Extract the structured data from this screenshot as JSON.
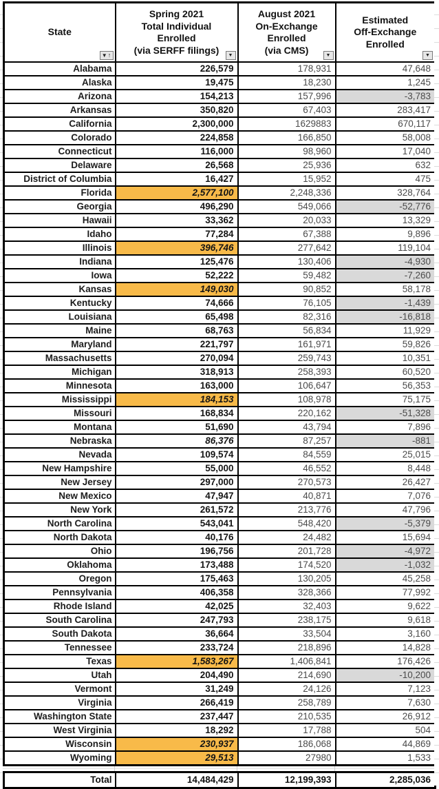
{
  "table": {
    "columns": [
      {
        "key": "state",
        "title": "State",
        "filter_icon": "filter-sort-ascending"
      },
      {
        "key": "spring",
        "title": "Spring 2021\nTotal Individual\nEnrolled\n(via SERFF filings)",
        "filter_icon": "filter-dropdown"
      },
      {
        "key": "august",
        "title": "August 2021\nOn-Exchange\nEnrolled\n(via CMS)",
        "filter_icon": "filter-dropdown"
      },
      {
        "key": "offex",
        "title": "Estimated\nOff-Exchange\nEnrolled",
        "filter_icon": "filter-dropdown"
      }
    ],
    "rows": [
      {
        "state": "Alabama",
        "spring": "226,579",
        "august": "178,931",
        "offex": "47,648"
      },
      {
        "state": "Alaska",
        "spring": "19,475",
        "august": "18,230",
        "offex": "1,245"
      },
      {
        "state": "Arizona",
        "spring": "154,213",
        "august": "157,996",
        "offex": "-3,783",
        "offex_style": "gray"
      },
      {
        "state": "Arkansas",
        "spring": "350,820",
        "august": "67,403",
        "offex": "283,417"
      },
      {
        "state": "California",
        "spring": "2,300,000",
        "august": "1629883",
        "offex": "670,117"
      },
      {
        "state": "Colorado",
        "spring": "224,858",
        "august": "166,850",
        "offex": "58,008"
      },
      {
        "state": "Connecticut",
        "spring": "116,000",
        "august": "98,960",
        "offex": "17,040"
      },
      {
        "state": "Delaware",
        "spring": "26,568",
        "august": "25,936",
        "offex": "632"
      },
      {
        "state": "District of Columbia",
        "spring": "16,427",
        "august": "15,952",
        "offex": "475"
      },
      {
        "state": "Florida",
        "spring": "2,577,100",
        "august": "2,248,336",
        "offex": "328,764",
        "spring_style": "orange"
      },
      {
        "state": "Georgia",
        "spring": "496,290",
        "august": "549,066",
        "offex": "-52,776",
        "offex_style": "gray"
      },
      {
        "state": "Hawaii",
        "spring": "33,362",
        "august": "20,033",
        "offex": "13,329"
      },
      {
        "state": "Idaho",
        "spring": "77,284",
        "august": "67,388",
        "offex": "9,896"
      },
      {
        "state": "Illinois",
        "spring": "396,746",
        "august": "277,642",
        "offex": "119,104",
        "spring_style": "orange"
      },
      {
        "state": "Indiana",
        "spring": "125,476",
        "august": "130,406",
        "offex": "-4,930",
        "offex_style": "gray"
      },
      {
        "state": "Iowa",
        "spring": "52,222",
        "august": "59,482",
        "offex": "-7,260",
        "offex_style": "gray"
      },
      {
        "state": "Kansas",
        "spring": "149,030",
        "august": "90,852",
        "offex": "58,178",
        "spring_style": "orange"
      },
      {
        "state": "Kentucky",
        "spring": "74,666",
        "august": "76,105",
        "offex": "-1,439",
        "offex_style": "gray"
      },
      {
        "state": "Louisiana",
        "spring": "65,498",
        "august": "82,316",
        "offex": "-16,818",
        "offex_style": "gray"
      },
      {
        "state": "Maine",
        "spring": "68,763",
        "august": "56,834",
        "offex": "11,929"
      },
      {
        "state": "Maryland",
        "spring": "221,797",
        "august": "161,971",
        "offex": "59,826"
      },
      {
        "state": "Massachusetts",
        "spring": "270,094",
        "august": "259,743",
        "offex": "10,351"
      },
      {
        "state": "Michigan",
        "spring": "318,913",
        "august": "258,393",
        "offex": "60,520"
      },
      {
        "state": "Minnesota",
        "spring": "163,000",
        "august": "106,647",
        "offex": "56,353"
      },
      {
        "state": "Mississippi",
        "spring": "184,153",
        "august": "108,978",
        "offex": "75,175",
        "spring_style": "orange"
      },
      {
        "state": "Missouri",
        "spring": "168,834",
        "august": "220,162",
        "offex": "-51,328",
        "offex_style": "gray"
      },
      {
        "state": "Montana",
        "spring": "51,690",
        "august": "43,794",
        "offex": "7,896"
      },
      {
        "state": "Nebraska",
        "spring": "86,376",
        "august": "87,257",
        "offex": "-881",
        "spring_style": "italic",
        "offex_style": "gray"
      },
      {
        "state": "Nevada",
        "spring": "109,574",
        "august": "84,559",
        "offex": "25,015"
      },
      {
        "state": "New Hampshire",
        "spring": "55,000",
        "august": "46,552",
        "offex": "8,448"
      },
      {
        "state": "New Jersey",
        "spring": "297,000",
        "august": "270,573",
        "offex": "26,427"
      },
      {
        "state": "New Mexico",
        "spring": "47,947",
        "august": "40,871",
        "offex": "7,076"
      },
      {
        "state": "New York",
        "spring": "261,572",
        "august": "213,776",
        "offex": "47,796"
      },
      {
        "state": "North Carolina",
        "spring": "543,041",
        "august": "548,420",
        "offex": "-5,379",
        "offex_style": "gray"
      },
      {
        "state": "North Dakota",
        "spring": "40,176",
        "august": "24,482",
        "offex": "15,694"
      },
      {
        "state": "Ohio",
        "spring": "196,756",
        "august": "201,728",
        "offex": "-4,972",
        "offex_style": "gray"
      },
      {
        "state": "Oklahoma",
        "spring": "173,488",
        "august": "174,520",
        "offex": "-1,032",
        "offex_style": "gray"
      },
      {
        "state": "Oregon",
        "spring": "175,463",
        "august": "130,205",
        "offex": "45,258"
      },
      {
        "state": "Pennsylvania",
        "spring": "406,358",
        "august": "328,366",
        "offex": "77,992"
      },
      {
        "state": "Rhode Island",
        "spring": "42,025",
        "august": "32,403",
        "offex": "9,622"
      },
      {
        "state": "South Carolina",
        "spring": "247,793",
        "august": "238,175",
        "offex": "9,618"
      },
      {
        "state": "South Dakota",
        "spring": "36,664",
        "august": "33,504",
        "offex": "3,160"
      },
      {
        "state": "Tennessee",
        "spring": "233,724",
        "august": "218,896",
        "offex": "14,828"
      },
      {
        "state": "Texas",
        "spring": "1,583,267",
        "august": "1,406,841",
        "offex": "176,426",
        "spring_style": "orange"
      },
      {
        "state": "Utah",
        "spring": "204,490",
        "august": "214,690",
        "offex": "-10,200",
        "offex_style": "gray"
      },
      {
        "state": "Vermont",
        "spring": "31,249",
        "august": "24,126",
        "offex": "7,123"
      },
      {
        "state": "Virginia",
        "spring": "266,419",
        "august": "258,789",
        "offex": "7,630"
      },
      {
        "state": "Washington State",
        "spring": "237,447",
        "august": "210,535",
        "offex": "26,912"
      },
      {
        "state": "West Virginia",
        "spring": "18,292",
        "august": "17,788",
        "offex": "504"
      },
      {
        "state": "Wisconsin",
        "spring": "230,937",
        "august": "186,068",
        "offex": "44,869",
        "spring_style": "orange"
      },
      {
        "state": "Wyoming",
        "spring": "29,513",
        "august": "27980",
        "offex": "1,533",
        "spring_style": "orange"
      }
    ],
    "total": {
      "label": "Total",
      "spring": "14,484,429",
      "august": "12,199,393",
      "offex": "2,285,036"
    }
  },
  "icons": {
    "filter_dropdown": "▼",
    "sort_ascending": "↑"
  },
  "colors": {
    "highlight_orange": "#f8ba49",
    "highlight_gray": "#d9d9d9",
    "border": "#000000"
  }
}
